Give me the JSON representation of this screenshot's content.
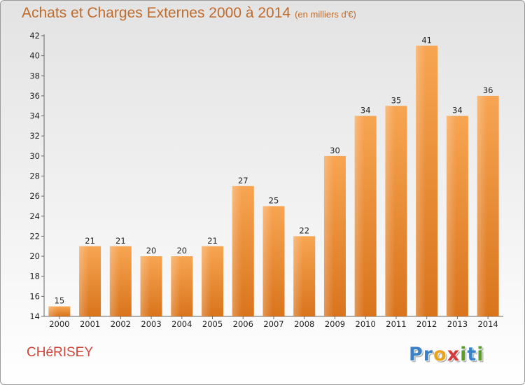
{
  "chart_data": {
    "type": "bar",
    "title": "Achats et Charges Externes 2000 à 2014",
    "subtitle": "(en milliers d'€)",
    "xlabel": "",
    "ylabel": "",
    "categories": [
      "2000",
      "2001",
      "2002",
      "2003",
      "2004",
      "2005",
      "2006",
      "2007",
      "2008",
      "2009",
      "2010",
      "2011",
      "2012",
      "2013",
      "2014"
    ],
    "values": [
      15,
      21,
      21,
      20,
      20,
      21,
      27,
      25,
      22,
      30,
      34,
      35,
      41,
      34,
      36
    ],
    "ylim": [
      14,
      42
    ],
    "yticks": [
      14,
      16,
      18,
      20,
      22,
      24,
      26,
      28,
      30,
      32,
      34,
      36,
      38,
      40,
      42
    ],
    "grid": false,
    "bar_color": "#f0922f"
  },
  "commune": "CHéRISEY",
  "logo": {
    "letters": [
      {
        "ch": "P",
        "color": "#3a82c8"
      },
      {
        "ch": "r",
        "color": "#3a82c8"
      },
      {
        "ch": "o",
        "color": "#e8a21c"
      },
      {
        "ch": "x",
        "color": "#d23b3b"
      },
      {
        "ch": "i",
        "color": "#5a9e2a"
      },
      {
        "ch": "t",
        "color": "#3a82c8"
      },
      {
        "ch": "i",
        "color": "#5a9e2a"
      }
    ]
  }
}
